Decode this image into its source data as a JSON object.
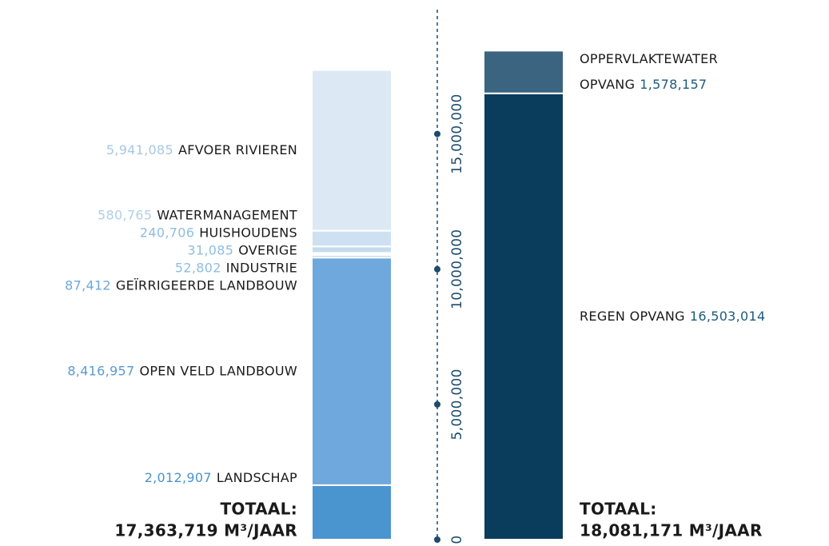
{
  "chart_data": {
    "type": "stacked_bar",
    "ylim": [
      0,
      19600000
    ],
    "yticks": [
      0,
      {
        "value": 5000000,
        "label": "5,000,000"
      },
      {
        "value": 10000000,
        "label": "10,000,000"
      },
      {
        "value": 15000000,
        "label": "15,000,000"
      }
    ],
    "axis_color": "#1e4a6b",
    "bars": [
      {
        "label_side": "left",
        "total_title": "TOTAAL:",
        "total_label": "17,363,719 M³/JAAR",
        "segments": [
          {
            "name": "LANDSCHAP",
            "value": 2012907,
            "value_label": "2,012,907",
            "color": "#4a94d0",
            "label_color": "#4a94d0"
          },
          {
            "name": "OPEN VELD LANDBOUW",
            "value": 8416957,
            "value_label": "8,416,957",
            "color": "#6fa8dc",
            "label_color": "#5b9bd5"
          },
          {
            "name": "GEÏRRIGEERDE LANDBOUW",
            "value": 87412,
            "value_label": "87,412",
            "color": "#a3c8e8",
            "label_color": "#6fa8dc"
          },
          {
            "name": "INDUSTRIE",
            "value": 52802,
            "value_label": "52,802",
            "color": "#a9cde9",
            "label_color": "#8ebde3"
          },
          {
            "name": "OVERIGE",
            "value": 31085,
            "value_label": "31,085",
            "color": "#b3d3ec",
            "label_color": "#8ebde3"
          },
          {
            "name": "HUISHOUDENS",
            "value": 240706,
            "value_label": "240,706",
            "color": "#c5dcef",
            "label_color": "#8ebde3"
          },
          {
            "name": "WATERMANAGEMENT",
            "value": 580765,
            "value_label": "580,765",
            "color": "#cde1f2",
            "label_color": "#b0cfe8"
          },
          {
            "name": "AFVOER RIVIEREN",
            "value": 5941085,
            "value_label": "5,941,085",
            "color": "#dce9f5",
            "label_color": "#a8c8e3"
          }
        ]
      },
      {
        "label_side": "right",
        "total_title": "TOTAAL:",
        "total_label": "18,081,171 M³/JAAR",
        "segments": [
          {
            "name": "REGEN OPVANG",
            "value": 16503014,
            "value_label": "16,503,014",
            "color": "#0a3d5c",
            "label_color": "#1e5a7a"
          },
          {
            "name": [
              "OPPERVLAKTEWATER",
              "OPVANG"
            ],
            "value": 1578157,
            "value_label": "1,578,157",
            "color": "#3a6480",
            "label_color": "#1e5a7a"
          }
        ]
      }
    ]
  }
}
